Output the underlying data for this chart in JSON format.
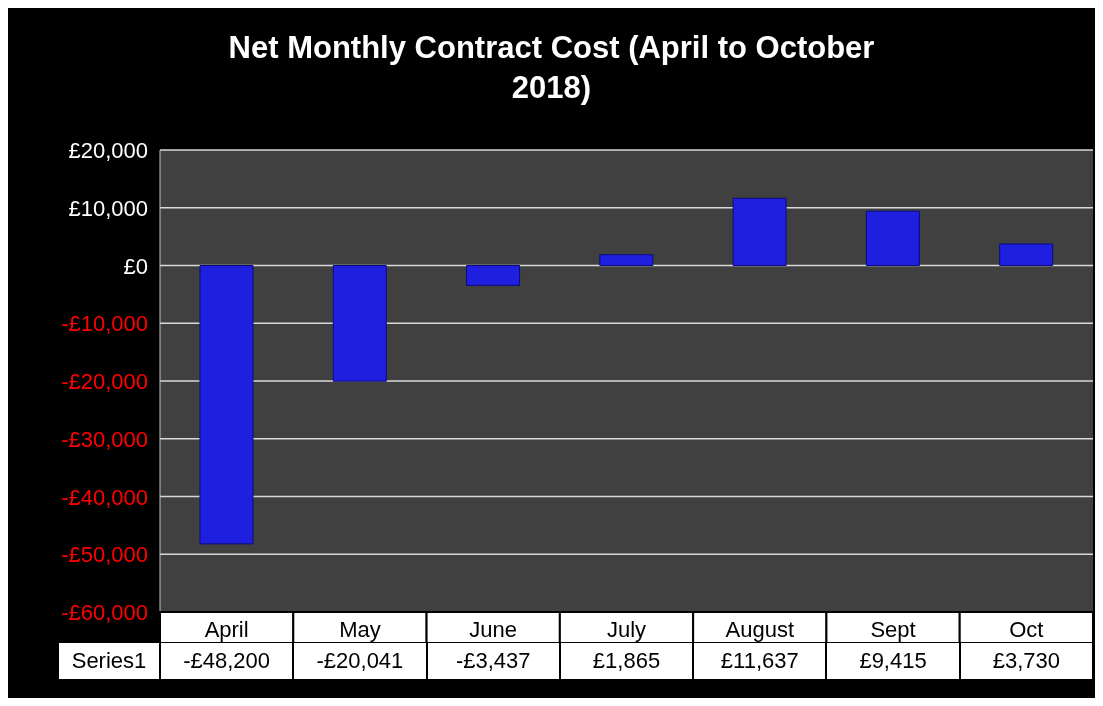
{
  "chart_data": {
    "type": "bar",
    "title": "Net Monthly Contract Cost (April to October 2018)",
    "categories": [
      "April",
      "May",
      "June",
      "July",
      "August",
      "Sept",
      "Oct"
    ],
    "series": [
      {
        "name": "Series1",
        "color": "#1f1fe0",
        "values": [
          -48200,
          -20041,
          -3437,
          1865,
          11637,
          9415,
          3730
        ],
        "value_labels": [
          "-£48,200",
          "-£20,041",
          "-£3,437",
          "£1,865",
          "£11,637",
          "£9,415",
          "£3,730"
        ]
      }
    ],
    "ylim": [
      -60000,
      20000
    ],
    "yticks": [
      {
        "value": -60000,
        "label": "-£60,000"
      },
      {
        "value": -50000,
        "label": "-£50,000"
      },
      {
        "value": -40000,
        "label": "-£40,000"
      },
      {
        "value": -30000,
        "label": "-£30,000"
      },
      {
        "value": -20000,
        "label": "-£20,000"
      },
      {
        "value": -10000,
        "label": "-£10,000"
      },
      {
        "value": 0,
        "label": "£0"
      },
      {
        "value": 10000,
        "label": "£10,000"
      },
      {
        "value": 20000,
        "label": "£20,000"
      }
    ],
    "grid": "y",
    "legend": false
  }
}
